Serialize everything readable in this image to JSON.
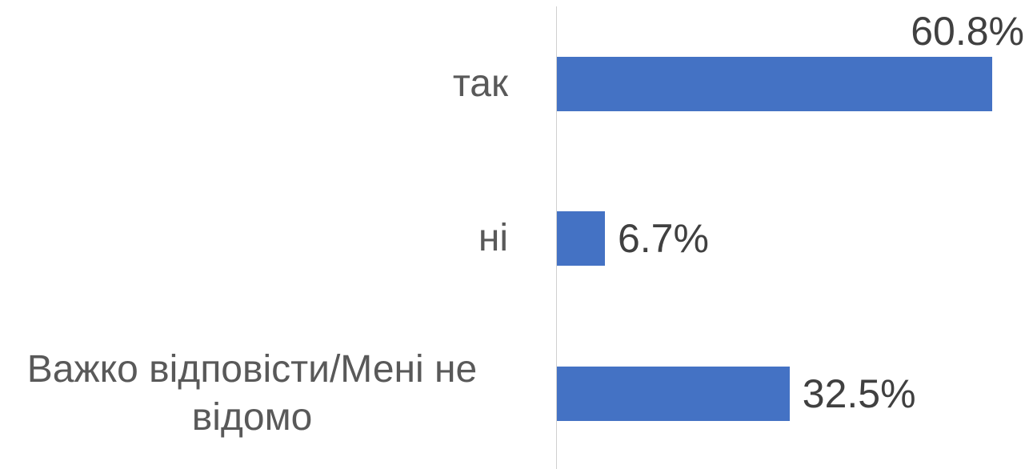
{
  "chart_data": {
    "type": "bar",
    "orientation": "horizontal",
    "categories": [
      "так",
      "ні",
      "Важко відповісти/Мені не відомо"
    ],
    "values": [
      60.8,
      6.7,
      32.5
    ],
    "value_labels": [
      "60.8%",
      "6.7%",
      "32.5%"
    ],
    "color": "#4472c4",
    "xlim": [
      0,
      65
    ]
  }
}
